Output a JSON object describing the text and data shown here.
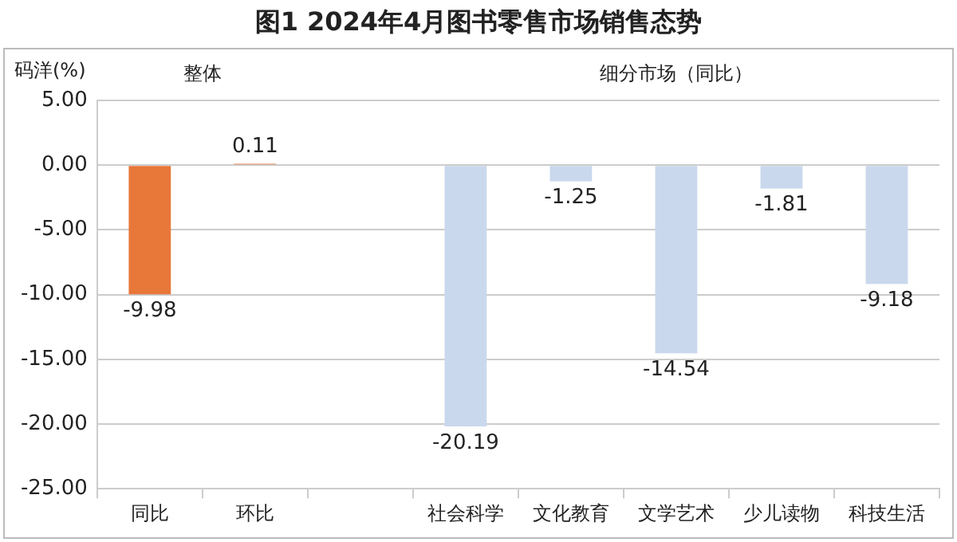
{
  "chart_data": {
    "type": "bar",
    "title": "图1  2024年4月图书零售市场销售态势",
    "ylabel": "码洋(%)",
    "annotations": [
      "整体",
      "细分市场（同比）"
    ],
    "categories": [
      "同比",
      "环比",
      null,
      "社会科学",
      "文化教育",
      "文学艺术",
      "少儿读物",
      "科技生活"
    ],
    "values": [
      -9.98,
      0.11,
      null,
      -20.19,
      -1.25,
      -14.54,
      -1.81,
      -9.18
    ],
    "colors": [
      "#e8773a",
      "#e8773a",
      "#c9d8ec",
      "#c9d8ec",
      "#c9d8ec",
      "#c9d8ec",
      "#c9d8ec",
      "#c9d8ec"
    ],
    "ylim": [
      -25,
      5
    ],
    "yticks": [
      {
        "value": 5,
        "label": "5.00"
      },
      {
        "value": 0,
        "label": "0.00"
      },
      {
        "value": -5,
        "label": "-5.00"
      },
      {
        "value": -10,
        "label": "-10.00"
      },
      {
        "value": -15,
        "label": "-15.00"
      },
      {
        "value": -20,
        "label": "-20.00"
      },
      {
        "value": -25,
        "label": "-25.00"
      }
    ],
    "grid": "y",
    "data_labels": true
  }
}
